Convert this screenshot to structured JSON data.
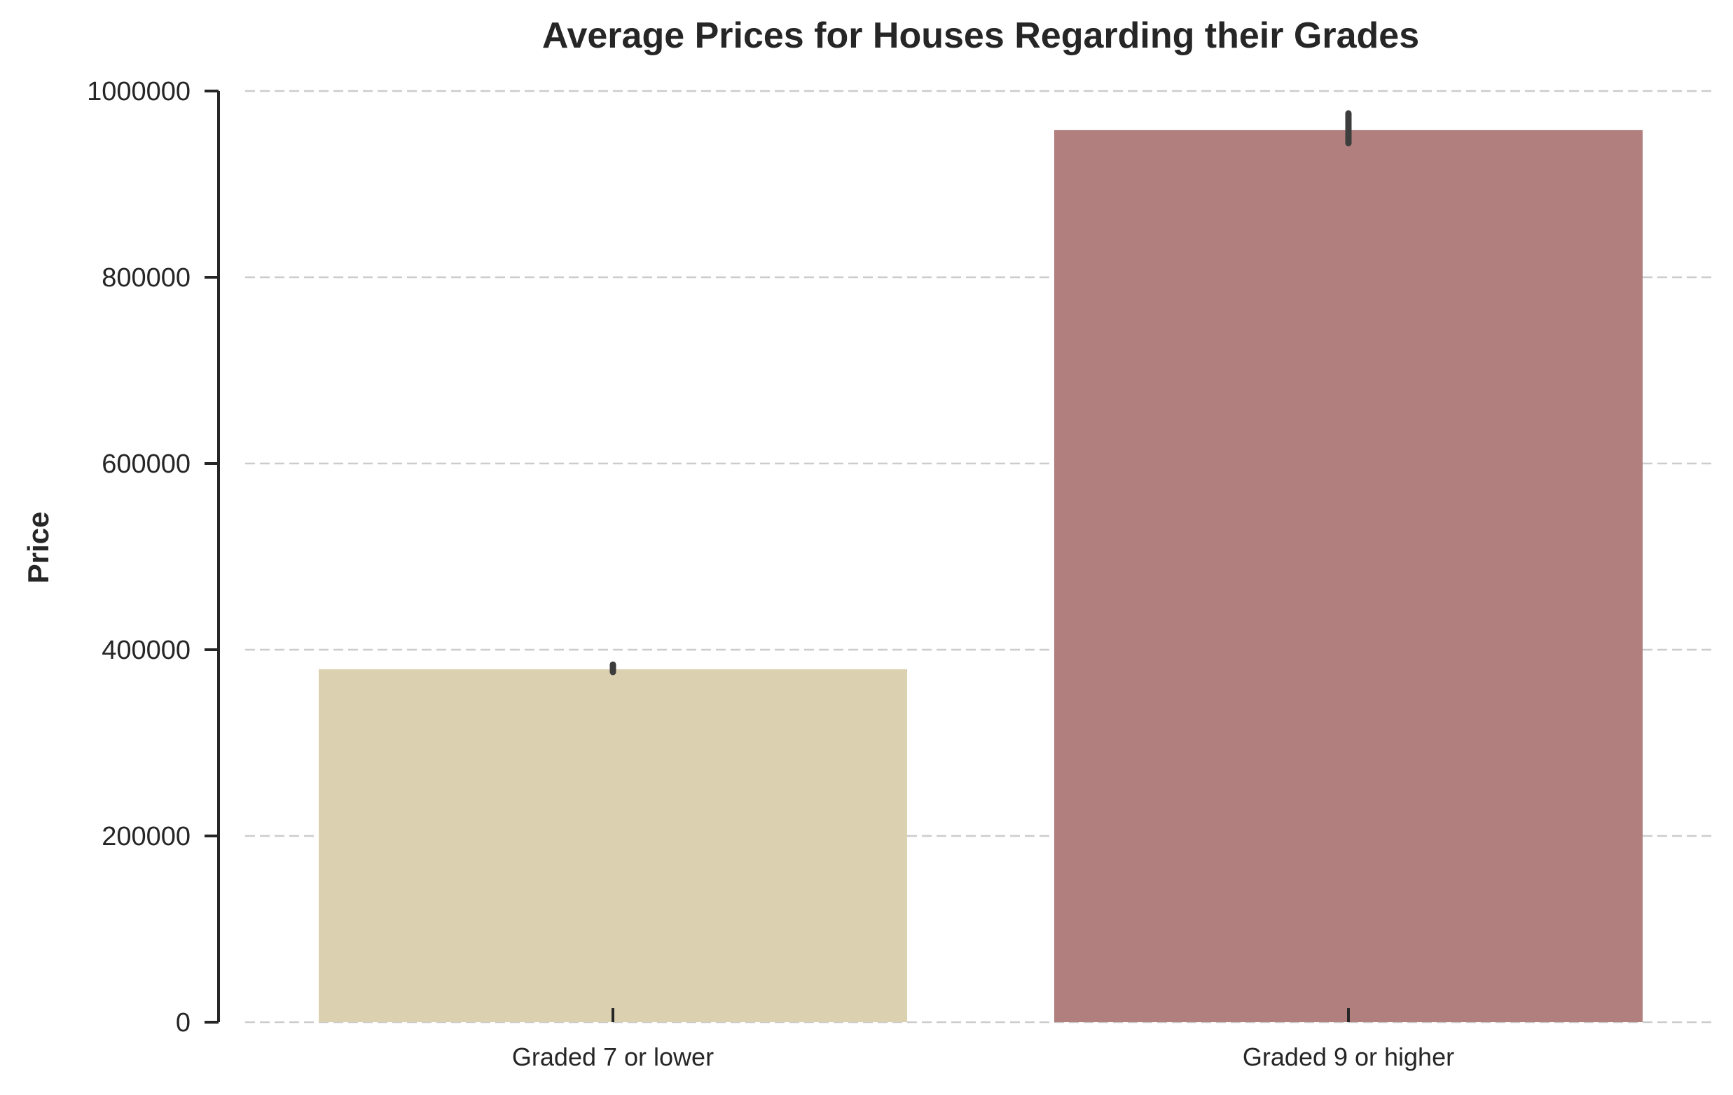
{
  "chart_data": {
    "type": "bar",
    "title": "Average Prices for Houses Regarding their Grades",
    "xlabel": "",
    "ylabel": "Price",
    "categories": [
      "Graded 7 or lower",
      "Graded 9 or higher"
    ],
    "values": [
      379000,
      958000
    ],
    "error_bars": [
      [
        376000,
        384000
      ],
      [
        944000,
        976000
      ]
    ],
    "ylim": [
      0,
      1000000
    ],
    "yticks": [
      0,
      200000,
      400000,
      600000,
      800000,
      1000000
    ],
    "ytick_labels": [
      "0",
      "200000",
      "400000",
      "600000",
      "800000",
      "1000000"
    ],
    "colors": [
      "#dbd1b0",
      "#b07f7e"
    ],
    "error_bar_color": "#3d3d3d",
    "grid": "horizontal dashed",
    "legend": "none"
  }
}
